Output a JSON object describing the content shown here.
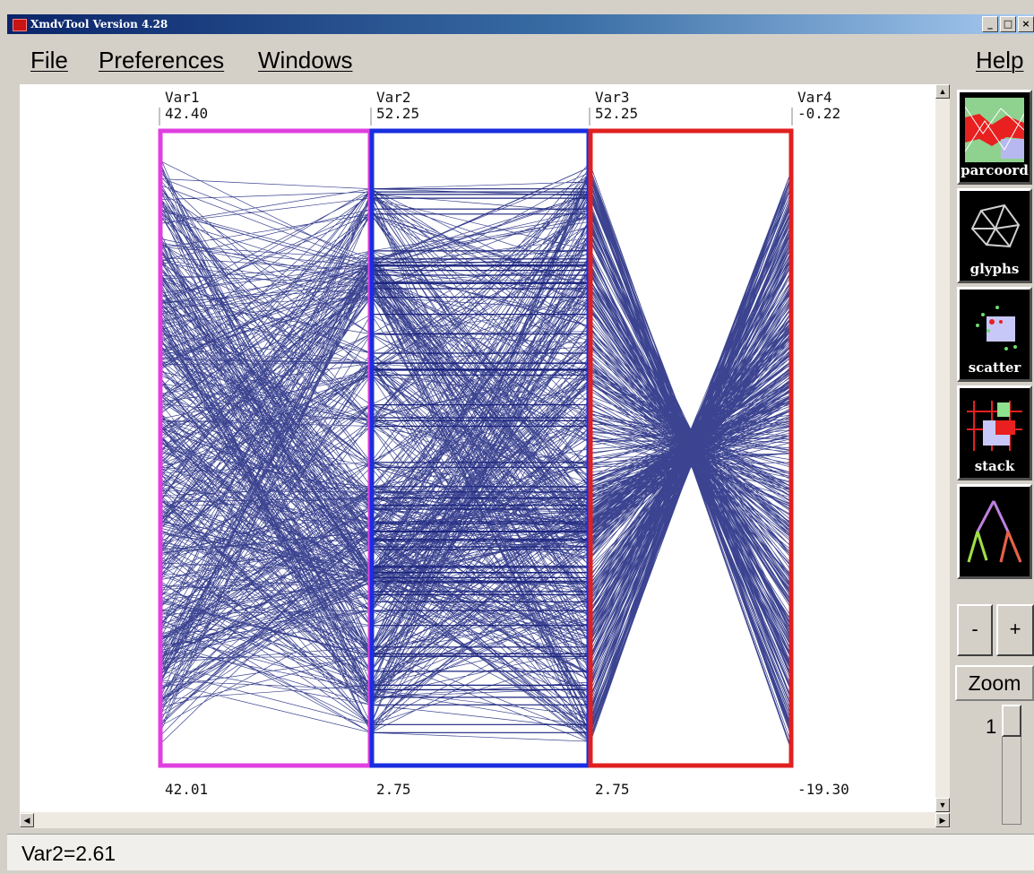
{
  "window": {
    "title": "XmdvTool Version 4.28",
    "min_glyph": "_",
    "max_glyph": "□",
    "close_glyph": "×"
  },
  "menu": {
    "file": "File",
    "preferences": "Preferences",
    "windows": "Windows",
    "help": "Help"
  },
  "status": {
    "text": "Var2=2.61"
  },
  "toolbar": {
    "parcoord_label": "parcoord",
    "glyphs_label": "glyphs",
    "scatter_label": "scatter",
    "stack_label": "stack",
    "minus_label": "-",
    "plus_label": "+",
    "zoom_label": "Zoom",
    "zoom_value": "1"
  },
  "icons": [
    "app-icon",
    "parcoord-icon",
    "glyphs-icon",
    "scatter-icon",
    "stack-icon",
    "hierarchy-icon"
  ],
  "chart_data": {
    "type": "parallel-coordinates",
    "axes": [
      {
        "name": "Var1",
        "max": "42.40",
        "min": "42.01",
        "color": "#e040e0"
      },
      {
        "name": "Var2",
        "max": "52.25",
        "min": "2.75",
        "color": "#1a2ee0"
      },
      {
        "name": "Var3",
        "max": "52.25",
        "min": "2.75",
        "color": "#e02020"
      },
      {
        "name": "Var4",
        "max": "-0.22",
        "min": "-19.30",
        "color": "#e02020"
      }
    ],
    "line_color": "#1a237e"
  }
}
